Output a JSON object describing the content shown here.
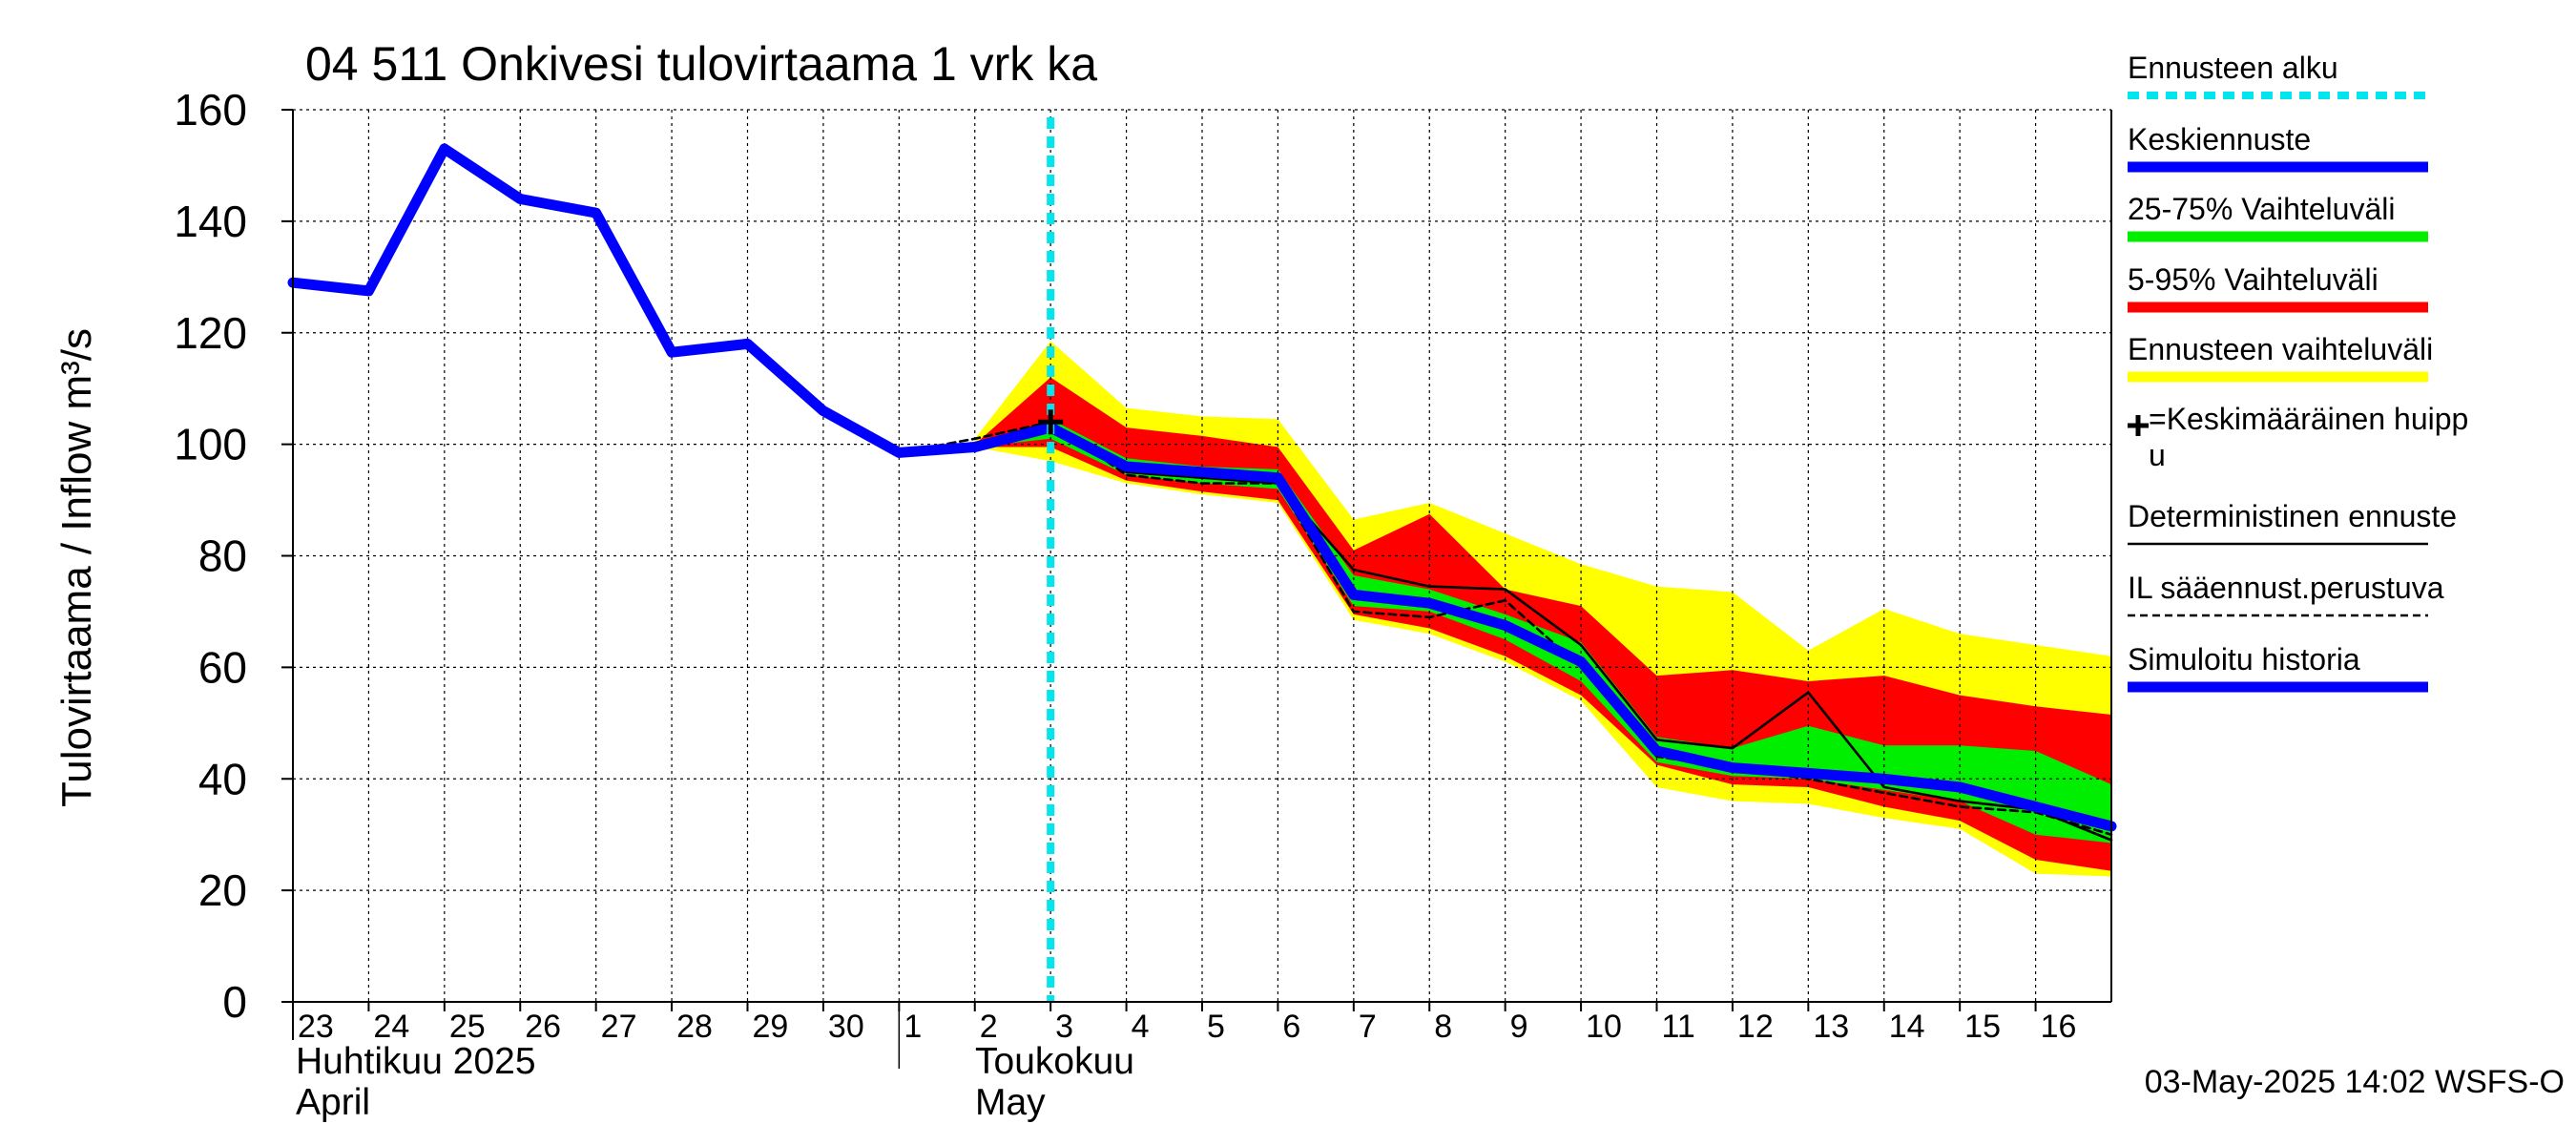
{
  "chart_data": {
    "type": "area",
    "title": "04 511 Onkivesi tulovirtaama 1 vrk ka",
    "ylabel": "Tulovirtaama / Inflow    m³/s",
    "ylim": [
      0,
      160
    ],
    "yticks": [
      0,
      20,
      40,
      60,
      80,
      100,
      120,
      140,
      160
    ],
    "xlim": [
      0,
      24
    ],
    "x_tick_labels": [
      "23",
      "24",
      "25",
      "26",
      "27",
      "28",
      "29",
      "30",
      "1",
      "2",
      "3",
      "4",
      "5",
      "6",
      "7",
      "8",
      "9",
      "10",
      "11",
      "12",
      "13",
      "14",
      "15",
      "16"
    ],
    "month_labels": {
      "april_fi": "Huhtikuu  2025",
      "april_en": "April",
      "may_fi": "Toukokuu",
      "may_en": "May"
    },
    "grid": true,
    "legend_position": "right",
    "forecast_start_x": 10.0,
    "series": {
      "simulated_history": {
        "name": "Simuloitu historia",
        "x": [
          0,
          1,
          2,
          3,
          4,
          5,
          6,
          7,
          8,
          9,
          10
        ],
        "y": [
          129,
          127.5,
          153,
          144,
          141.5,
          116.5,
          118,
          106,
          98.5,
          99.5,
          103
        ]
      },
      "mean_forecast": {
        "name": "Keskiennuste",
        "x": [
          10,
          11,
          12,
          13,
          14,
          15,
          16,
          17,
          18,
          19,
          20,
          21,
          22,
          23,
          24
        ],
        "y": [
          103,
          96,
          95,
          94,
          73,
          71.5,
          67.5,
          61,
          45,
          42,
          41,
          40,
          38.5,
          35,
          31.5
        ]
      },
      "deterministic_forecast": {
        "name": "Deterministinen ennuste",
        "x": [
          8,
          9,
          10,
          11,
          12,
          13,
          14,
          15,
          16,
          17,
          18,
          19,
          20,
          21,
          22,
          23,
          24
        ],
        "y": [
          98.5,
          100,
          104,
          95,
          94,
          93,
          77.5,
          74.5,
          74,
          64,
          47,
          45.5,
          55.5,
          38.5,
          36,
          34.5,
          29
        ]
      },
      "il_weather_forecast": {
        "name": "IL sääennust.perustuva",
        "x": [
          8,
          9,
          10,
          11,
          12,
          13,
          14,
          15,
          16,
          17,
          18,
          19,
          20,
          21,
          22,
          23,
          24
        ],
        "y": [
          98.5,
          101,
          104,
          94.5,
          93,
          93,
          70,
          69,
          72,
          60,
          44,
          42,
          40,
          37.5,
          35,
          34,
          30
        ]
      },
      "range_5_95": {
        "name": "5-95% Vaihteluväli",
        "x": [
          9,
          10,
          11,
          12,
          13,
          14,
          15,
          16,
          17,
          18,
          19,
          20,
          21,
          22,
          23,
          24
        ],
        "low": [
          99.5,
          99.5,
          93.5,
          91.5,
          90,
          69.5,
          67,
          62,
          55,
          42.5,
          39,
          38.5,
          35,
          32.5,
          25.5,
          23.5
        ],
        "high": [
          100,
          112,
          103,
          101.5,
          99.5,
          81,
          87.5,
          74,
          71,
          58.5,
          59.5,
          57.5,
          58.5,
          55,
          53,
          51.5
        ]
      },
      "range_25_75": {
        "name": "25-75% Vaihteluväli",
        "x": [
          9,
          10,
          11,
          12,
          13,
          14,
          15,
          16,
          17,
          18,
          19,
          20,
          21,
          22,
          23,
          24
        ],
        "low": [
          99.5,
          101,
          94.5,
          93,
          92,
          71,
          70,
          65,
          57.5,
          43,
          40.5,
          40,
          38,
          36,
          30,
          28.5
        ],
        "high": [
          99.5,
          104.5,
          97.5,
          96,
          95.5,
          76.5,
          74,
          69.5,
          64.5,
          47.5,
          45.5,
          49.5,
          46,
          46,
          45,
          39
        ]
      },
      "forecast_range": {
        "name": "Ennusteen vaihteluväli",
        "x": [
          9,
          10,
          11,
          12,
          13,
          14,
          15,
          16,
          17,
          18,
          19,
          20,
          21,
          22,
          23,
          24
        ],
        "low": [
          99.5,
          97,
          93,
          91,
          89.5,
          68.5,
          66,
          61,
          54,
          38.5,
          36,
          35.5,
          33,
          31,
          23,
          22.5
        ],
        "high": [
          101,
          118.5,
          106.5,
          105,
          104.5,
          86.5,
          89.5,
          84,
          78.5,
          74.5,
          73.5,
          63,
          70.5,
          66,
          64,
          62
        ]
      },
      "mean_peak": {
        "name": "=Keskimääräinen huippu",
        "x": 10,
        "y": 104
      }
    },
    "legend": [
      {
        "key": "forecast_start",
        "label": "Ennusteen alku",
        "color": "#00e5ee",
        "style": "dotted"
      },
      {
        "key": "mean_forecast",
        "label": "Keskiennuste",
        "color": "#0000ff",
        "style": "thick"
      },
      {
        "key": "range_25_75",
        "label": "25-75% Vaihteluväli",
        "color": "#00ee00",
        "style": "thick"
      },
      {
        "key": "range_5_95",
        "label": "5-95% Vaihteluväli",
        "color": "#ff0000",
        "style": "thick"
      },
      {
        "key": "forecast_range",
        "label": "Ennusteen vaihteluväli",
        "color": "#ffff00",
        "style": "thick"
      },
      {
        "key": "mean_peak",
        "label": "=Keskimääräinen huipp\nu",
        "color": "#000000",
        "style": "plus"
      },
      {
        "key": "deterministic_forecast",
        "label": "Deterministinen ennuste",
        "color": "#000000",
        "style": "thin"
      },
      {
        "key": "il_weather_forecast",
        "label": "IL sääennust.perustuva",
        "color": "#000000",
        "style": "dashed"
      },
      {
        "key": "simulated_history",
        "label": "Simuloitu historia",
        "color": "#0000ff",
        "style": "thick"
      }
    ],
    "colors": {
      "history": "#0000ff",
      "mean": "#0000ff",
      "range_25_75": "#00ee00",
      "range_5_95": "#ff0000",
      "forecast_range": "#ffff00",
      "forecast_start": "#00e5ee",
      "deterministic": "#000000",
      "grid": "#000000"
    },
    "timestamp": "03-May-2025 14:02 WSFS-O"
  }
}
